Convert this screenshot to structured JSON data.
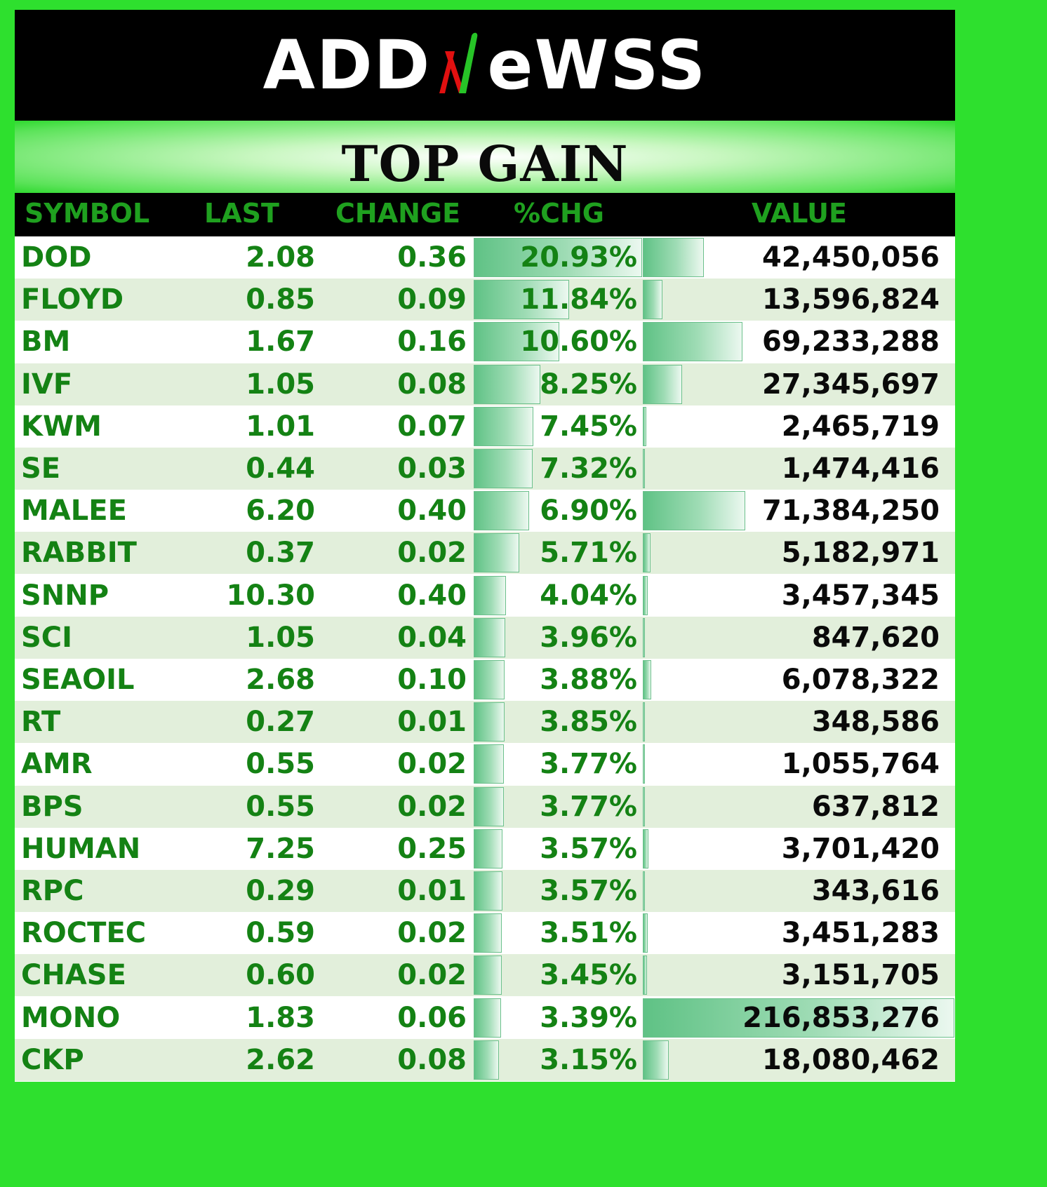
{
  "brand": {
    "logo_left": "ADD",
    "logo_right": "eWSS",
    "logo_full": "ADDNEWSS",
    "slash_colors": [
      "#e01010",
      "#27c427"
    ]
  },
  "title": "TOP GAIN",
  "columns": {
    "symbol": "SYMBOL",
    "last": "LAST",
    "change": "CHANGE",
    "pct": "%CHG",
    "value": "VALUE"
  },
  "colors": {
    "background": "#2ee02e",
    "header_text": "#1fa01f",
    "green_text": "#148214",
    "bar": "#5fc285"
  },
  "rows": [
    {
      "symbol": "DOD",
      "last": "2.08",
      "change": "0.36",
      "pct": "20.93%",
      "value": "42,450,056",
      "pct_num": 20.93,
      "value_num": 42450056
    },
    {
      "symbol": "FLOYD",
      "last": "0.85",
      "change": "0.09",
      "pct": "11.84%",
      "value": "13,596,824",
      "pct_num": 11.84,
      "value_num": 13596824
    },
    {
      "symbol": "BM",
      "last": "1.67",
      "change": "0.16",
      "pct": "10.60%",
      "value": "69,233,288",
      "pct_num": 10.6,
      "value_num": 69233288
    },
    {
      "symbol": "IVF",
      "last": "1.05",
      "change": "0.08",
      "pct": "8.25%",
      "value": "27,345,697",
      "pct_num": 8.25,
      "value_num": 27345697
    },
    {
      "symbol": "KWM",
      "last": "1.01",
      "change": "0.07",
      "pct": "7.45%",
      "value": "2,465,719",
      "pct_num": 7.45,
      "value_num": 2465719
    },
    {
      "symbol": "SE",
      "last": "0.44",
      "change": "0.03",
      "pct": "7.32%",
      "value": "1,474,416",
      "pct_num": 7.32,
      "value_num": 1474416
    },
    {
      "symbol": "MALEE",
      "last": "6.20",
      "change": "0.40",
      "pct": "6.90%",
      "value": "71,384,250",
      "pct_num": 6.9,
      "value_num": 71384250
    },
    {
      "symbol": "RABBIT",
      "last": "0.37",
      "change": "0.02",
      "pct": "5.71%",
      "value": "5,182,971",
      "pct_num": 5.71,
      "value_num": 5182971
    },
    {
      "symbol": "SNNP",
      "last": "10.30",
      "change": "0.40",
      "pct": "4.04%",
      "value": "3,457,345",
      "pct_num": 4.04,
      "value_num": 3457345
    },
    {
      "symbol": "SCI",
      "last": "1.05",
      "change": "0.04",
      "pct": "3.96%",
      "value": "847,620",
      "pct_num": 3.96,
      "value_num": 847620
    },
    {
      "symbol": "SEAOIL",
      "last": "2.68",
      "change": "0.10",
      "pct": "3.88%",
      "value": "6,078,322",
      "pct_num": 3.88,
      "value_num": 6078322
    },
    {
      "symbol": "RT",
      "last": "0.27",
      "change": "0.01",
      "pct": "3.85%",
      "value": "348,586",
      "pct_num": 3.85,
      "value_num": 348586
    },
    {
      "symbol": "AMR",
      "last": "0.55",
      "change": "0.02",
      "pct": "3.77%",
      "value": "1,055,764",
      "pct_num": 3.77,
      "value_num": 1055764
    },
    {
      "symbol": "BPS",
      "last": "0.55",
      "change": "0.02",
      "pct": "3.77%",
      "value": "637,812",
      "pct_num": 3.77,
      "value_num": 637812
    },
    {
      "symbol": "HUMAN",
      "last": "7.25",
      "change": "0.25",
      "pct": "3.57%",
      "value": "3,701,420",
      "pct_num": 3.57,
      "value_num": 3701420
    },
    {
      "symbol": "RPC",
      "last": "0.29",
      "change": "0.01",
      "pct": "3.57%",
      "value": "343,616",
      "pct_num": 3.57,
      "value_num": 343616
    },
    {
      "symbol": "ROCTEC",
      "last": "0.59",
      "change": "0.02",
      "pct": "3.51%",
      "value": "3,451,283",
      "pct_num": 3.51,
      "value_num": 3451283
    },
    {
      "symbol": "CHASE",
      "last": "0.60",
      "change": "0.02",
      "pct": "3.45%",
      "value": "3,151,705",
      "pct_num": 3.45,
      "value_num": 3151705
    },
    {
      "symbol": "MONO",
      "last": "1.83",
      "change": "0.06",
      "pct": "3.39%",
      "value": "216,853,276",
      "pct_num": 3.39,
      "value_num": 216853276
    },
    {
      "symbol": "CKP",
      "last": "2.62",
      "change": "0.08",
      "pct": "3.15%",
      "value": "18,080,462",
      "pct_num": 3.15,
      "value_num": 18080462
    }
  ]
}
